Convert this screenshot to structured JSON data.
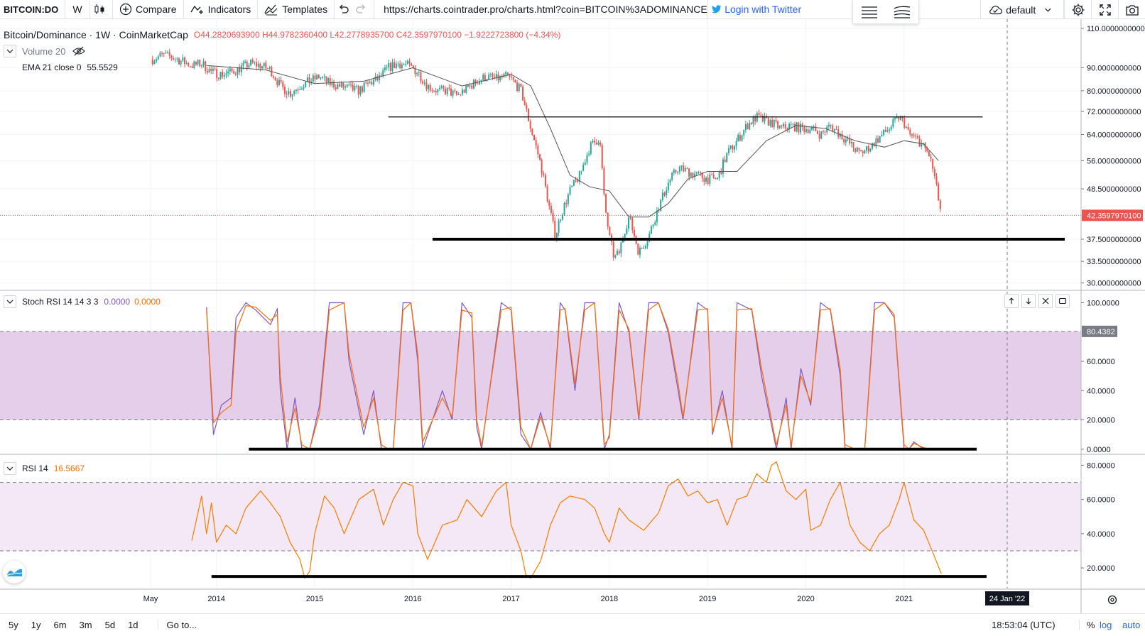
{
  "toolbar": {
    "symbol": "BITCOIN:DO",
    "interval": "W",
    "compare": "Compare",
    "indicators": "Indicators",
    "templates": "Templates",
    "url": "https://charts.cointrader.pro/charts.html?coin=BITCOIN%3ADOMINANCE",
    "login": "Login with Twitter",
    "layout": "default"
  },
  "legend": {
    "title": "Bitcoin/Dominance · 1W · CoinMarketCap",
    "ohlc": "O44.2820693900 H44.9782360400 L42.2778935700 C42.3597970100 −1.9222723800 (−4.34%)",
    "volume": "Volume 20",
    "ema_label": "EMA 21 close 0",
    "ema_value": "55.5529",
    "stoch_label": "Stoch RSI 14 14 3 3",
    "stoch_k": "0.0000",
    "stoch_d": "0.0000",
    "rsi_label": "RSI 14",
    "rsi_value": "16.5667"
  },
  "chart_data": [
    {
      "type": "line",
      "pane": "price",
      "title": "Bitcoin/Dominance · 1W · CoinMarketCap",
      "y_ticks": [
        "110.0000000000",
        "90.0000000000",
        "80.0000000000",
        "72.0000000000",
        "64.0000000000",
        "56.0000000000",
        "48.5000000000",
        "42.3597970100",
        "37.5000000000",
        "33.5000000000",
        "30.0000000000"
      ],
      "ylim": [
        29,
        112
      ],
      "scale": "log",
      "last_value": "42.3597970100",
      "series": [
        {
          "x": [
            2013.35,
            2013.45,
            2013.55,
            2013.65,
            2013.75,
            2013.85,
            2013.95,
            2014.05,
            2014.15,
            2014.25,
            2014.35,
            2014.45,
            2014.55,
            2014.65,
            2014.75,
            2014.85,
            2014.95,
            2015.05,
            2015.15,
            2015.25,
            2015.35,
            2015.45,
            2015.55,
            2015.65,
            2015.75,
            2015.85,
            2015.95,
            2016.05,
            2016.15,
            2016.25,
            2016.35,
            2016.45,
            2016.55,
            2016.65,
            2016.75,
            2016.85,
            2016.95,
            2017.0,
            2017.1,
            2017.2,
            2017.3,
            2017.38,
            2017.45,
            2017.5,
            2017.6,
            2017.7,
            2017.8,
            2017.9,
            2017.95,
            2018.0,
            2018.05,
            2018.1,
            2018.15,
            2018.2,
            2018.3,
            2018.4,
            2018.5,
            2018.6,
            2018.7,
            2018.8,
            2018.9,
            2019.0,
            2019.1,
            2019.2,
            2019.3,
            2019.4,
            2019.5,
            2019.55,
            2019.65,
            2019.75,
            2019.85,
            2019.95,
            2020.05,
            2020.15,
            2020.25,
            2020.35,
            2020.45,
            2020.55,
            2020.65,
            2020.75,
            2020.85,
            2020.95,
            2021.0,
            2021.05,
            2021.15,
            2021.25,
            2021.3,
            2021.35,
            2021.38
          ],
          "values": [
            94,
            96,
            95,
            93,
            91,
            92,
            88,
            87,
            88,
            90,
            92,
            91,
            89,
            82,
            79,
            82,
            84,
            86,
            83,
            82,
            81,
            80,
            83,
            85,
            90,
            92,
            91,
            88,
            82,
            80,
            80,
            78,
            81,
            84,
            86,
            85,
            86,
            85,
            80,
            66,
            55,
            45,
            38,
            42,
            48,
            52,
            60,
            63,
            45,
            38,
            34,
            35,
            39,
            42,
            35,
            38,
            44,
            50,
            54,
            53,
            52,
            51,
            51,
            58,
            62,
            67,
            70,
            69,
            68,
            66,
            67,
            66,
            66,
            64,
            67,
            64,
            61,
            58,
            60,
            63,
            66,
            70,
            68,
            64,
            62,
            58,
            53,
            46,
            42.4
          ]
        },
        {
          "name": "EMA 21",
          "x": [
            2013.9,
            2014.5,
            2015.0,
            2015.5,
            2016.0,
            2016.5,
            2017.0,
            2017.2,
            2017.4,
            2017.6,
            2017.8,
            2018.0,
            2018.2,
            2018.4,
            2018.6,
            2018.8,
            2019.0,
            2019.3,
            2019.6,
            2019.9,
            2020.2,
            2020.5,
            2020.8,
            2021.0,
            2021.2,
            2021.35
          ],
          "values": [
            91,
            89,
            83,
            84,
            90,
            82,
            87,
            82,
            66,
            52,
            49,
            48,
            42,
            42,
            45,
            51,
            53,
            53,
            62,
            67,
            66,
            62,
            60,
            62,
            61,
            56
          ]
        }
      ],
      "levels": [
        70,
        37.5
      ]
    },
    {
      "type": "line",
      "pane": "stoch_rsi",
      "title": "Stoch RSI 14 14 3 3",
      "y_ticks": [
        "100.0000",
        "80.4382",
        "60.0000",
        "40.0000",
        "20.0000",
        "0.0000"
      ],
      "ylim": [
        -3,
        108
      ],
      "band": [
        20,
        80
      ],
      "series": [
        {
          "name": "K",
          "x": [
            2013.9,
            2013.97,
            2014.05,
            2014.15,
            2014.2,
            2014.3,
            2014.4,
            2014.55,
            2014.62,
            2014.65,
            2014.72,
            2014.8,
            2014.87,
            2014.95,
            2015.05,
            2015.15,
            2015.3,
            2015.35,
            2015.5,
            2015.6,
            2015.68,
            2015.75,
            2015.8,
            2015.9,
            2015.98,
            2016.05,
            2016.1,
            2016.3,
            2016.4,
            2016.5,
            2016.6,
            2016.65,
            2016.7,
            2016.9,
            2017.0,
            2017.1,
            2017.2,
            2017.3,
            2017.4,
            2017.5,
            2017.55,
            2017.65,
            2017.75,
            2017.85,
            2017.95,
            2018.0,
            2018.1,
            2018.2,
            2018.3,
            2018.4,
            2018.5,
            2018.6,
            2018.7,
            2018.75,
            2018.9,
            2019.0,
            2019.05,
            2019.15,
            2019.25,
            2019.3,
            2019.45,
            2019.55,
            2019.7,
            2019.8,
            2019.85,
            2019.95,
            2020.05,
            2020.15,
            2020.25,
            2020.35,
            2020.4,
            2020.5,
            2020.6,
            2020.7,
            2020.8,
            2020.9,
            2021.0,
            2021.05,
            2021.1,
            2021.2,
            2021.3,
            2021.38
          ],
          "values": [
            97,
            10,
            30,
            35,
            90,
            100,
            95,
            85,
            96,
            40,
            0,
            35,
            0,
            0,
            30,
            100,
            100,
            60,
            10,
            40,
            0,
            0,
            0,
            100,
            100,
            60,
            0,
            40,
            20,
            100,
            90,
            15,
            0,
            100,
            95,
            10,
            0,
            25,
            0,
            100,
            95,
            40,
            100,
            100,
            0,
            10,
            100,
            80,
            20,
            100,
            100,
            80,
            40,
            20,
            100,
            95,
            10,
            40,
            0,
            100,
            95,
            50,
            0,
            35,
            0,
            55,
            30,
            100,
            95,
            50,
            0,
            0,
            0,
            100,
            100,
            90,
            0,
            0,
            5,
            0,
            0,
            0
          ]
        },
        {
          "name": "D",
          "x": [
            2013.9,
            2013.97,
            2014.05,
            2014.15,
            2014.2,
            2014.3,
            2014.4,
            2014.55,
            2014.62,
            2014.65,
            2014.72,
            2014.8,
            2014.87,
            2014.95,
            2015.05,
            2015.15,
            2015.3,
            2015.35,
            2015.5,
            2015.6,
            2015.68,
            2015.75,
            2015.8,
            2015.9,
            2015.98,
            2016.05,
            2016.1,
            2016.3,
            2016.4,
            2016.5,
            2016.6,
            2016.65,
            2016.7,
            2016.9,
            2017.0,
            2017.1,
            2017.2,
            2017.3,
            2017.4,
            2017.5,
            2017.55,
            2017.65,
            2017.75,
            2017.85,
            2017.95,
            2018.0,
            2018.1,
            2018.2,
            2018.3,
            2018.4,
            2018.5,
            2018.6,
            2018.7,
            2018.75,
            2018.9,
            2019.0,
            2019.05,
            2019.15,
            2019.25,
            2019.3,
            2019.45,
            2019.55,
            2019.7,
            2019.8,
            2019.85,
            2019.95,
            2020.05,
            2020.15,
            2020.25,
            2020.35,
            2020.4,
            2020.5,
            2020.6,
            2020.7,
            2020.8,
            2020.9,
            2021.0,
            2021.05,
            2021.1,
            2021.2,
            2021.3,
            2021.38
          ],
          "values": [
            95,
            18,
            25,
            30,
            80,
            98,
            97,
            88,
            92,
            50,
            5,
            28,
            3,
            0,
            25,
            95,
            100,
            65,
            15,
            35,
            3,
            0,
            0,
            95,
            100,
            65,
            5,
            35,
            22,
            95,
            93,
            20,
            2,
            95,
            97,
            15,
            0,
            22,
            2,
            95,
            96,
            45,
            95,
            100,
            3,
            8,
            95,
            82,
            22,
            95,
            100,
            82,
            45,
            22,
            95,
            96,
            12,
            35,
            2,
            95,
            96,
            55,
            3,
            30,
            2,
            50,
            32,
            95,
            96,
            55,
            3,
            0,
            0,
            95,
            100,
            92,
            3,
            0,
            4,
            1,
            0,
            0
          ]
        }
      ]
    },
    {
      "type": "line",
      "pane": "rsi",
      "title": "RSI 14",
      "y_ticks": [
        "80.0000",
        "60.0000",
        "40.0000",
        "20.0000"
      ],
      "ylim": [
        8,
        86
      ],
      "band": [
        30,
        70
      ],
      "series": [
        {
          "name": "RSI",
          "x": [
            2013.75,
            2013.85,
            2013.9,
            2013.95,
            2014.0,
            2014.1,
            2014.2,
            2014.3,
            2014.45,
            2014.55,
            2014.65,
            2014.75,
            2014.85,
            2014.9,
            2014.95,
            2015.0,
            2015.1,
            2015.2,
            2015.3,
            2015.45,
            2015.6,
            2015.7,
            2015.8,
            2015.9,
            2016.0,
            2016.05,
            2016.15,
            2016.3,
            2016.45,
            2016.55,
            2016.7,
            2016.85,
            2016.95,
            2017.0,
            2017.1,
            2017.15,
            2017.2,
            2017.3,
            2017.4,
            2017.5,
            2017.6,
            2017.75,
            2017.85,
            2017.95,
            2018.0,
            2018.1,
            2018.2,
            2018.35,
            2018.5,
            2018.6,
            2018.7,
            2018.8,
            2018.9,
            2019.0,
            2019.1,
            2019.2,
            2019.3,
            2019.4,
            2019.5,
            2019.6,
            2019.65,
            2019.7,
            2019.8,
            2019.9,
            2020.0,
            2020.05,
            2020.15,
            2020.25,
            2020.35,
            2020.45,
            2020.55,
            2020.65,
            2020.75,
            2020.85,
            2020.95,
            2021.0,
            2021.1,
            2021.2,
            2021.3,
            2021.38
          ],
          "values": [
            36,
            62,
            40,
            58,
            35,
            45,
            40,
            55,
            65,
            58,
            50,
            35,
            25,
            14,
            18,
            40,
            62,
            55,
            40,
            60,
            66,
            45,
            60,
            70,
            68,
            40,
            25,
            45,
            48,
            60,
            50,
            65,
            70,
            45,
            30,
            16,
            14,
            24,
            45,
            58,
            62,
            60,
            55,
            40,
            35,
            55,
            48,
            42,
            52,
            68,
            72,
            62,
            65,
            58,
            60,
            45,
            60,
            62,
            75,
            70,
            80,
            82,
            65,
            60,
            66,
            42,
            45,
            60,
            70,
            45,
            35,
            30,
            40,
            45,
            60,
            70,
            48,
            42,
            28,
            16.6
          ]
        }
      ]
    }
  ],
  "x_axis": {
    "ticks": [
      "May",
      "2014",
      "2015",
      "2016",
      "2017",
      "2018",
      "2019",
      "2020",
      "2021"
    ],
    "crosshair_label": "24 Jan '22"
  },
  "bottom_bar": {
    "ranges": [
      "5y",
      "1y",
      "6m",
      "3m",
      "5d",
      "1d"
    ],
    "goto": "Go to...",
    "clock": "18:53:04 (UTC)",
    "pct": "%",
    "log": "log",
    "auto": "auto"
  },
  "colors": {
    "up": "#26a69a",
    "down": "#ef5350",
    "ema": "#555555",
    "stoch_k": "#7e57c2",
    "stoch_d": "#ff6d00",
    "rsi": "#f57c00",
    "band_stoch": "#e1c5e6",
    "band_rsi": "#f3e5f5",
    "accent": "#2962ff"
  }
}
